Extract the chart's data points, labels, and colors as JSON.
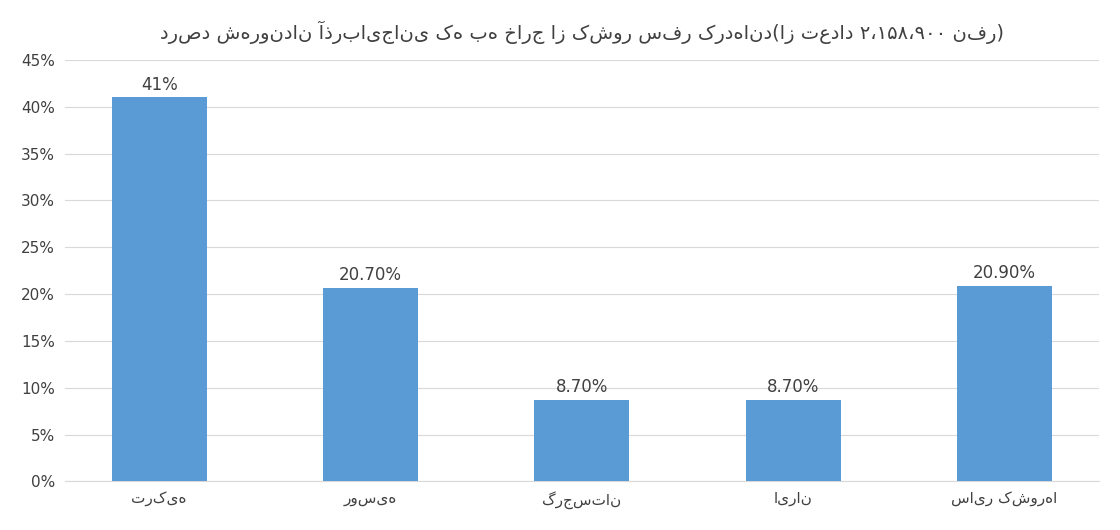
{
  "title": "درصد شهروندان آذربایجانی که به خارج از کشور سفر کردهاند(از تعداد ۲،۱۵۸،۹۰۰ نفر)",
  "categories": [
    "ترکیه",
    "روسیه",
    "گرجستان",
    "ایران",
    "سایر کشورها"
  ],
  "values": [
    41.0,
    20.7,
    8.7,
    8.7,
    20.9
  ],
  "labels": [
    "41%",
    "20.70%",
    "8.70%",
    "8.70%",
    "20.90%"
  ],
  "bar_color": "#5B9BD5",
  "ylim": [
    0,
    45
  ],
  "yticks": [
    0,
    5,
    10,
    15,
    20,
    25,
    30,
    35,
    40,
    45
  ],
  "background_color": "#FFFFFF",
  "grid_color": "#D9D9D9",
  "title_fontsize": 14,
  "label_fontsize": 12,
  "tick_fontsize": 11
}
